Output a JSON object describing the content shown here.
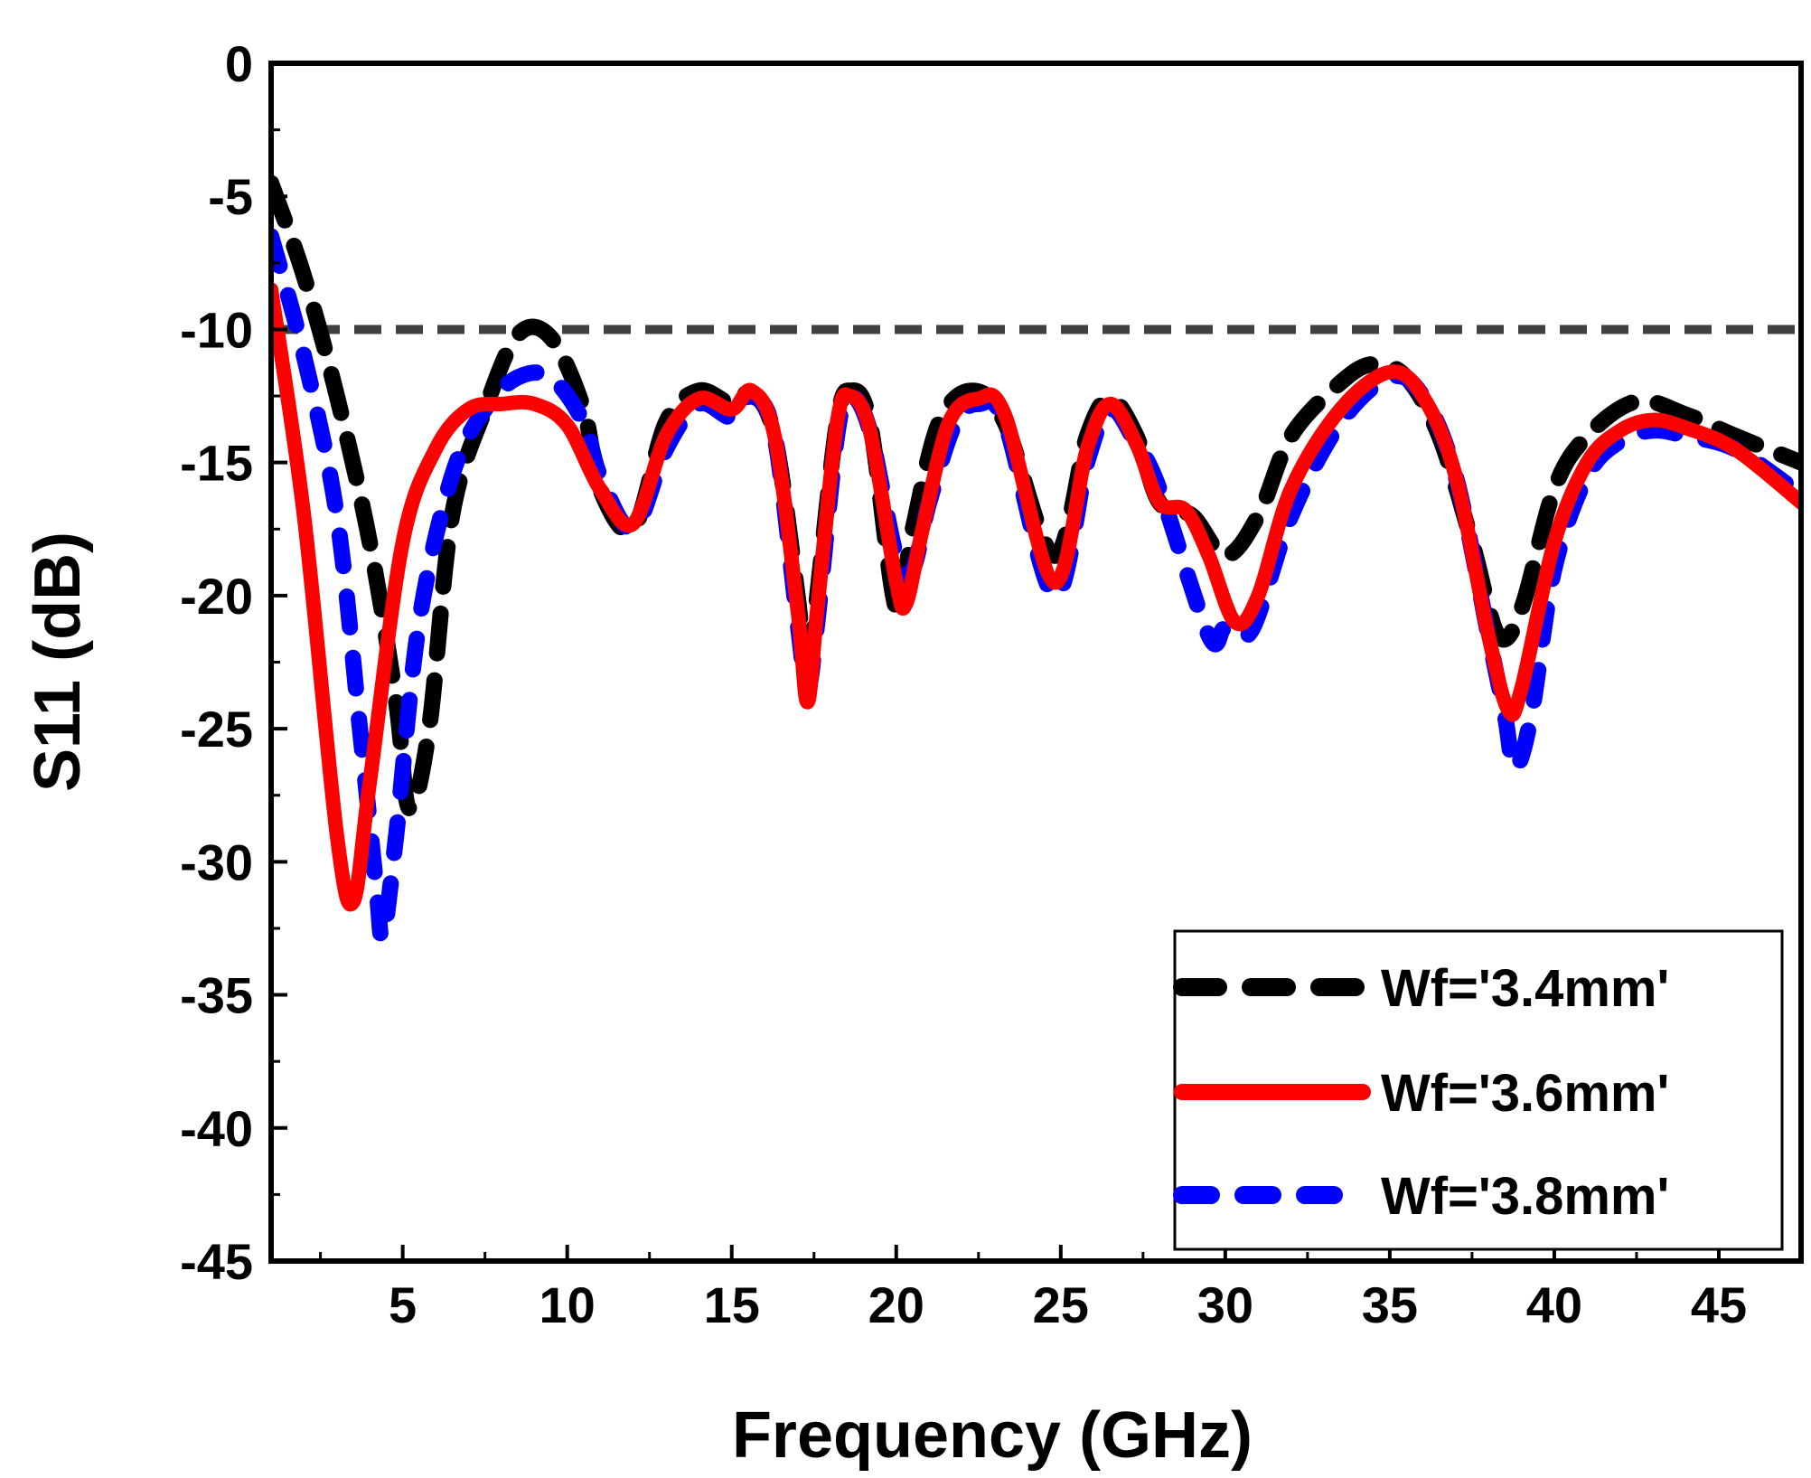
{
  "chart_data": {
    "type": "line",
    "title": "",
    "xlabel": "Frequency (GHz)",
    "ylabel": "S11 (dB)",
    "xlim": [
      1,
      47.5
    ],
    "ylim": [
      -45,
      0
    ],
    "xticks": [
      5,
      10,
      15,
      20,
      25,
      30,
      35,
      40,
      45
    ],
    "yticks": [
      0,
      -5,
      -10,
      -15,
      -20,
      -25,
      -30,
      -35,
      -40,
      -45
    ],
    "grid": false,
    "legend_position": "bottom-right",
    "reference_line": {
      "y": -10,
      "color": "#404040",
      "style": "dashed"
    },
    "series": [
      {
        "name": "Wf='3.4mm'",
        "color": "#000000",
        "style": "dashed",
        "points": [
          [
            1,
            -4.5
          ],
          [
            2,
            -8
          ],
          [
            3,
            -12.5
          ],
          [
            4,
            -18
          ],
          [
            4.8,
            -24
          ],
          [
            5.2,
            -28
          ],
          [
            5.8,
            -25
          ],
          [
            6.5,
            -17
          ],
          [
            7.5,
            -13
          ],
          [
            8.5,
            -10.2
          ],
          [
            9.5,
            -10.3
          ],
          [
            10.5,
            -13
          ],
          [
            11,
            -16
          ],
          [
            12,
            -17.5
          ],
          [
            13,
            -13.5
          ],
          [
            14,
            -12.3
          ],
          [
            15,
            -12.8
          ],
          [
            15.6,
            -12.4
          ],
          [
            16.3,
            -14
          ],
          [
            17,
            -20
          ],
          [
            17.3,
            -23.5
          ],
          [
            17.6,
            -20
          ],
          [
            18.2,
            -13.5
          ],
          [
            18.6,
            -12.3
          ],
          [
            19.2,
            -13.5
          ],
          [
            20,
            -20.5
          ],
          [
            20.5,
            -17.5
          ],
          [
            21.3,
            -13.5
          ],
          [
            22.3,
            -12.3
          ],
          [
            23.3,
            -13.5
          ],
          [
            24.8,
            -18.5
          ],
          [
            25.8,
            -14
          ],
          [
            26.5,
            -12.6
          ],
          [
            27.3,
            -14
          ],
          [
            28,
            -16.5
          ],
          [
            29,
            -17
          ],
          [
            30,
            -18.5
          ],
          [
            31,
            -17
          ],
          [
            32,
            -14
          ],
          [
            33.5,
            -12
          ],
          [
            34.5,
            -11.3
          ],
          [
            35.5,
            -11.8
          ],
          [
            36.5,
            -14
          ],
          [
            37.5,
            -18
          ],
          [
            38.3,
            -21.5
          ],
          [
            39,
            -20.5
          ],
          [
            40,
            -16
          ],
          [
            41,
            -14
          ],
          [
            42.5,
            -12.7
          ],
          [
            44,
            -13.2
          ],
          [
            45.5,
            -14
          ],
          [
            47.5,
            -15
          ]
        ]
      },
      {
        "name": "Wf='3.6mm'",
        "color": "#ff0000",
        "style": "solid",
        "points": [
          [
            1,
            -8.5
          ],
          [
            2,
            -17
          ],
          [
            3,
            -29
          ],
          [
            3.5,
            -31.5
          ],
          [
            4,
            -27
          ],
          [
            5,
            -18
          ],
          [
            6,
            -14.5
          ],
          [
            7,
            -13
          ],
          [
            8,
            -12.8
          ],
          [
            9,
            -12.8
          ],
          [
            10,
            -13.6
          ],
          [
            11,
            -16
          ],
          [
            12,
            -17.3
          ],
          [
            13,
            -14
          ],
          [
            14,
            -12.6
          ],
          [
            15,
            -13
          ],
          [
            15.6,
            -12.3
          ],
          [
            16.3,
            -14
          ],
          [
            17,
            -20.5
          ],
          [
            17.3,
            -24
          ],
          [
            17.6,
            -20.5
          ],
          [
            18.2,
            -13.5
          ],
          [
            18.6,
            -12.5
          ],
          [
            19.2,
            -13.8
          ],
          [
            20,
            -19.5
          ],
          [
            20.3,
            -20.3
          ],
          [
            20.8,
            -17.5
          ],
          [
            21.6,
            -13.5
          ],
          [
            22.5,
            -12.6
          ],
          [
            23.3,
            -13.2
          ],
          [
            24.8,
            -19.5
          ],
          [
            25.8,
            -14.5
          ],
          [
            26.5,
            -12.8
          ],
          [
            27.3,
            -14.3
          ],
          [
            28,
            -16.5
          ],
          [
            28.8,
            -16.8
          ],
          [
            29.5,
            -18.5
          ],
          [
            30.3,
            -21
          ],
          [
            31,
            -20
          ],
          [
            32,
            -16
          ],
          [
            33.5,
            -13
          ],
          [
            35,
            -11.6
          ],
          [
            36,
            -12.5
          ],
          [
            37,
            -15.5
          ],
          [
            38,
            -21.5
          ],
          [
            38.6,
            -24.3
          ],
          [
            39,
            -23.5
          ],
          [
            40,
            -18
          ],
          [
            41,
            -15
          ],
          [
            42,
            -13.8
          ],
          [
            43,
            -13.4
          ],
          [
            44,
            -13.7
          ],
          [
            45.5,
            -14.5
          ],
          [
            47.5,
            -16.5
          ]
        ]
      },
      {
        "name": "Wf='3.8mm'",
        "color": "#0000ff",
        "style": "dashed",
        "points": [
          [
            1,
            -6.5
          ],
          [
            2,
            -11
          ],
          [
            3,
            -17
          ],
          [
            3.7,
            -25
          ],
          [
            4.2,
            -31
          ],
          [
            4.4,
            -32.8
          ],
          [
            4.8,
            -29
          ],
          [
            5.5,
            -21
          ],
          [
            6.5,
            -15.5
          ],
          [
            7.5,
            -13
          ],
          [
            8.5,
            -11.8
          ],
          [
            9.5,
            -11.8
          ],
          [
            10.5,
            -13.5
          ],
          [
            11,
            -15.5
          ],
          [
            12,
            -17.5
          ],
          [
            13,
            -14.5
          ],
          [
            14,
            -12.8
          ],
          [
            15,
            -13.3
          ],
          [
            15.6,
            -12.5
          ],
          [
            16.3,
            -14
          ],
          [
            17,
            -21
          ],
          [
            17.3,
            -23.5
          ],
          [
            17.6,
            -21
          ],
          [
            18.2,
            -14
          ],
          [
            18.6,
            -12.5
          ],
          [
            19.2,
            -13.8
          ],
          [
            20,
            -18.5
          ],
          [
            20.5,
            -19
          ],
          [
            21,
            -16.5
          ],
          [
            21.8,
            -13.5
          ],
          [
            22.5,
            -12.8
          ],
          [
            23.3,
            -13.5
          ],
          [
            24.8,
            -20
          ],
          [
            25.8,
            -15
          ],
          [
            26.5,
            -13
          ],
          [
            27.3,
            -14.3
          ],
          [
            28,
            -16
          ],
          [
            29.5,
            -21.5
          ],
          [
            30,
            -21.2
          ],
          [
            30.8,
            -21.3
          ],
          [
            32,
            -17
          ],
          [
            33.5,
            -13.5
          ],
          [
            35,
            -11.8
          ],
          [
            36,
            -12.5
          ],
          [
            37,
            -15.5
          ],
          [
            38,
            -21.5
          ],
          [
            38.5,
            -24.5
          ],
          [
            38.8,
            -26.5
          ],
          [
            39.3,
            -24.5
          ],
          [
            40,
            -19
          ],
          [
            41,
            -15.5
          ],
          [
            42,
            -14.2
          ],
          [
            43,
            -13.8
          ],
          [
            44,
            -14
          ],
          [
            45.5,
            -14.5
          ],
          [
            47.5,
            -16.2
          ]
        ]
      }
    ]
  }
}
